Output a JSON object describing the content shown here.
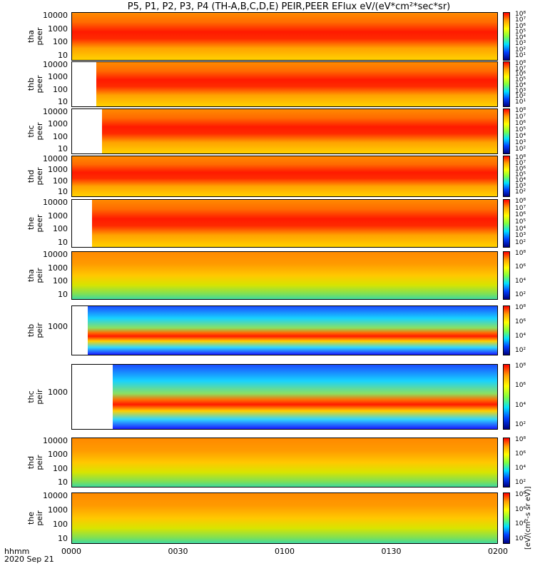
{
  "title": "P5, P1, P2, P3, P4 (TH-A,B,C,D,E) PEIR,PEER EFlux eV/(eV*cm²*sec*sr)",
  "colorbar_units": "[eV/(cm²-s sr eV)]",
  "time_axis": {
    "label_top": "hhmm",
    "label_bottom": "2020 Sep 21",
    "ticks": [
      "0000",
      "0030",
      "0100",
      "0130",
      "0200"
    ]
  },
  "chart_data": [
    {
      "type": "heatmap",
      "probe": "tha",
      "product": "peer",
      "ylabel": "tha peer",
      "yticks": [
        "10000",
        "1000",
        "100",
        "10"
      ],
      "scale": "log",
      "cbar_ticks": [
        "10⁸",
        "10⁷",
        "10⁶",
        "10⁵",
        "10⁴",
        "10³",
        "10²",
        "10¹"
      ]
    },
    {
      "type": "heatmap",
      "probe": "thb",
      "product": "peer",
      "ylabel": "thb peer",
      "yticks": [
        "10000",
        "1000",
        "100",
        "10"
      ],
      "scale": "log",
      "cbar_ticks": [
        "10⁸",
        "10⁷",
        "10⁶",
        "10⁵",
        "10⁴",
        "10³",
        "10²",
        "10¹"
      ]
    },
    {
      "type": "heatmap",
      "probe": "thc",
      "product": "peer",
      "ylabel": "thc peer",
      "yticks": [
        "10000",
        "1000",
        "100",
        "10"
      ],
      "scale": "log",
      "cbar_ticks": [
        "10⁸",
        "10⁷",
        "10⁶",
        "10⁵",
        "10⁴",
        "10³",
        "10²"
      ]
    },
    {
      "type": "heatmap",
      "probe": "thd",
      "product": "peer",
      "ylabel": "thd peer",
      "yticks": [
        "10000",
        "1000",
        "100",
        "10"
      ],
      "scale": "log",
      "cbar_ticks": [
        "10⁸",
        "10⁷",
        "10⁶",
        "10⁵",
        "10⁴",
        "10³",
        "10²"
      ]
    },
    {
      "type": "heatmap",
      "probe": "the",
      "product": "peer",
      "ylabel": "the peer",
      "yticks": [
        "10000",
        "1000",
        "100",
        "10"
      ],
      "scale": "log",
      "cbar_ticks": [
        "10⁸",
        "10⁷",
        "10⁶",
        "10⁵",
        "10⁴",
        "10³",
        "10²"
      ]
    },
    {
      "type": "heatmap",
      "probe": "tha",
      "product": "peir",
      "ylabel": "tha peir",
      "yticks": [
        "10000",
        "1000",
        "100",
        "10"
      ],
      "scale": "log",
      "cbar_ticks": [
        "10⁸",
        "10⁶",
        "10⁴",
        "10²"
      ]
    },
    {
      "type": "heatmap",
      "probe": "thb",
      "product": "peir",
      "ylabel": "thb peir",
      "yticks": [
        "1000"
      ],
      "scale": "log",
      "cbar_ticks": [
        "10⁸",
        "10⁶",
        "10⁴",
        "10²"
      ]
    },
    {
      "type": "heatmap",
      "probe": "thc",
      "product": "peir",
      "ylabel": "thc peir",
      "yticks": [
        "1000"
      ],
      "scale": "log",
      "cbar_ticks": [
        "10⁸",
        "10⁶",
        "10⁴",
        "10²"
      ]
    },
    {
      "type": "heatmap",
      "probe": "thd",
      "product": "peir",
      "ylabel": "thd peir",
      "yticks": [
        "10000",
        "1000",
        "100",
        "10"
      ],
      "scale": "log",
      "cbar_ticks": [
        "10⁸",
        "10⁶",
        "10⁴",
        "10²"
      ]
    },
    {
      "type": "heatmap",
      "probe": "the",
      "product": "peir",
      "ylabel": "the peir",
      "yticks": [
        "10000",
        "1000",
        "100",
        "10"
      ],
      "scale": "log",
      "cbar_ticks": [
        "10⁸",
        "10⁶",
        "10⁴",
        "10²"
      ]
    }
  ]
}
